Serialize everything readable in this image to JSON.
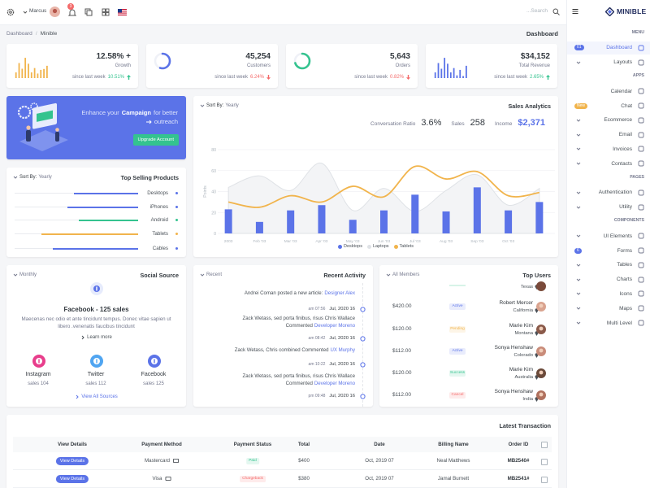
{
  "topbar": {
    "user": "Marcus",
    "notification_count": "3",
    "search_placeholder": "...Search"
  },
  "breadcrumb": {
    "items": [
      "Dashboard",
      "Minible"
    ],
    "separator": "/",
    "page_title": "Dashboard"
  },
  "sidebar": {
    "logo": "MINIBLE",
    "sections": [
      {
        "title": "MENU",
        "items": [
          {
            "label": "Dashboard",
            "badge": "01",
            "badge_color": "#5b73e8",
            "active": true
          },
          {
            "label": "Layouts",
            "submenu": true
          }
        ]
      },
      {
        "title": "APPS",
        "items": [
          {
            "label": "Calendar"
          },
          {
            "label": "Chat",
            "badge": "New",
            "badge_color": "#f1b44c"
          },
          {
            "label": "Ecommerce",
            "submenu": true
          },
          {
            "label": "Email",
            "submenu": true
          },
          {
            "label": "Invoices",
            "submenu": true
          },
          {
            "label": "Contacts",
            "submenu": true
          }
        ]
      },
      {
        "title": "PAGES",
        "items": [
          {
            "label": "Authentication",
            "submenu": true
          },
          {
            "label": "Utility",
            "submenu": true
          }
        ]
      },
      {
        "title": "COMPONENTS",
        "items": [
          {
            "label": "UI Elements",
            "submenu": true
          },
          {
            "label": "Forms",
            "badge": "6",
            "badge_color": "#5b73e8"
          },
          {
            "label": "Tables",
            "submenu": true
          },
          {
            "label": "Charts",
            "submenu": true
          },
          {
            "label": "Icons",
            "submenu": true
          },
          {
            "label": "Maps",
            "submenu": true
          },
          {
            "label": "Multi Level",
            "submenu": true
          }
        ]
      }
    ]
  },
  "stats": [
    {
      "value": "12.58% +",
      "label": "Growth",
      "note": "since last week",
      "change": "10.51%",
      "trend": "up",
      "chart_data": {
        "type": "bar",
        "color": "#f1b44c",
        "ylim": [
          0,
          100
        ],
        "values": [
          25,
          66,
          41,
          89,
          63,
          25,
          44,
          20,
          36,
          40,
          54
        ]
      }
    },
    {
      "value": "45,254",
      "label": "Customers",
      "note": "since last week",
      "change": "6.24%",
      "trend": "down",
      "chart_data": {
        "type": "radial",
        "color": "#5b73e8",
        "ylim": [
          0,
          100
        ],
        "values": [
          55
        ]
      }
    },
    {
      "value": "5,643",
      "label": "Orders",
      "note": "since last week",
      "change": "0.82%",
      "trend": "down",
      "chart_data": {
        "type": "radial",
        "color": "#34c38f",
        "ylim": [
          0,
          100
        ],
        "values": [
          70
        ]
      }
    },
    {
      "value": "$34,152",
      "label": "Total Revenue",
      "note": "since last week",
      "change": "2.65%",
      "trend": "up",
      "chart_data": {
        "type": "bar",
        "color": "#5b73e8",
        "ylim": [
          0,
          100
        ],
        "values": [
          25,
          66,
          41,
          89,
          63,
          25,
          44,
          12,
          36,
          9,
          54
        ]
      }
    }
  ],
  "campaign": {
    "text_prefix": "Enhance your",
    "highlight": "Campaign",
    "text_suffix": "for better",
    "text_last": "outreach",
    "button": "Upgrade Account"
  },
  "sales_analytics": {
    "sort_label": "Sort By:",
    "sort_value": "Yearly",
    "title": "Sales Analytics",
    "metrics": [
      {
        "label": "Conversation Ratio",
        "value": "3.6%",
        "color": "#343a40"
      },
      {
        "label": "Sales",
        "value": "258",
        "color": "#343a40"
      },
      {
        "label": "Income",
        "value": "$2,371",
        "color": "#5b73e8"
      }
    ],
    "chart_data": {
      "type": "mixed",
      "y_label": "Points",
      "categories": [
        "2003",
        "Feb '03",
        "Mar '03",
        "Apr '03",
        "May '03",
        "Jun '03",
        "Jul '03",
        "Aug '03",
        "Sep '03",
        "Oct '03",
        null
      ],
      "series": [
        {
          "name": "Desktops",
          "kind": "bar",
          "color": "#5b73e8",
          "values": [
            23,
            11,
            22,
            27,
            13,
            22,
            37,
            21,
            44,
            22,
            30
          ]
        },
        {
          "name": "Laptops",
          "kind": "area",
          "color": "#dfe2e6",
          "values": [
            44,
            55,
            41,
            67,
            22,
            43,
            21,
            41,
            56,
            27,
            43
          ]
        },
        {
          "name": "Tablets",
          "kind": "line",
          "color": "#f1b44c",
          "values": [
            30,
            25,
            36,
            30,
            45,
            35,
            64,
            52,
            59,
            36,
            39
          ]
        }
      ],
      "ylim": [
        0,
        80
      ],
      "yticks": [
        0,
        20,
        40,
        60,
        80
      ],
      "grid": true
    }
  },
  "top_selling": {
    "sort_label": "Sort By:",
    "sort_value": "Yearly",
    "title": "Top Selling Products",
    "max": 100,
    "items": [
      {
        "label": "Desktops",
        "value": 52,
        "color": "#5b73e8"
      },
      {
        "label": "iPhones",
        "value": 57,
        "color": "#5b73e8"
      },
      {
        "label": "Android",
        "value": 48,
        "color": "#34c38f"
      },
      {
        "label": "Tablets",
        "value": 78,
        "color": "#f1b44c"
      },
      {
        "label": "Cables",
        "value": 69,
        "color": "#5b73e8"
      }
    ]
  },
  "social_source": {
    "period": "Monthly",
    "title": "Social Source",
    "headline": "Facebook - 125 sales",
    "description": "Maecenas nec odio et ante tincidunt tempus. Donec vitae sapien ut libero .venenatis faucibus tincidunt",
    "learn_more": "Learn more",
    "sources": [
      {
        "name": "Instagram",
        "sales": "sales 104",
        "color": "#e83e8c"
      },
      {
        "name": "Twitter",
        "sales": "sales 112",
        "color": "#50a5f1"
      },
      {
        "name": "Facebook",
        "sales": "sales 125",
        "color": "#5b73e8"
      }
    ],
    "view_all": "View All Sources"
  },
  "recent_activity": {
    "period": "Recent",
    "title": "Recent Activity",
    "items": [
      {
        "text": "Andrei Coman posted a new article:",
        "link": "Designer Alex",
        "time": "am 07:56",
        "date": "Jul, 2020 16"
      },
      {
        "text": "Zack Wetass, sed porta finibus, risus Chris Wallace Commented",
        "link": "Developer Moreno",
        "time": "am 08:42",
        "date": "Jul, 2020 16"
      },
      {
        "text": "Zack Wetass, Chris combined Commented",
        "link": "UX Murphy",
        "time": "am 10:22",
        "date": "Jul, 2020 16"
      },
      {
        "text": "Zack Wetass, sed porta finibus, risus Chris Wallace Commented",
        "link": "Developer Moreno",
        "time": "pm 09:48",
        "date": "Jul, 2020 16"
      }
    ]
  },
  "top_users": {
    "filter": "All Members",
    "title": "Top Users",
    "partial_location": "Texas",
    "users": [
      {
        "name": "Robert Mercer",
        "location": "California",
        "amount": "$420.00",
        "status": "Active",
        "status_color": "#5b73e8"
      },
      {
        "name": "Marie Kim",
        "location": "Montana",
        "amount": "$120.00",
        "status": "Pending",
        "status_color": "#f1b44c"
      },
      {
        "name": "Sonya Henshaw",
        "location": "Colorado",
        "amount": "$112.00",
        "status": "Active",
        "status_color": "#5b73e8"
      },
      {
        "name": "Marie Kim",
        "location": "Australia",
        "amount": "$120.00",
        "status": "Success",
        "status_color": "#34c38f"
      },
      {
        "name": "Sonya Henshaw",
        "location": "India",
        "amount": "$112.00",
        "status": "Cancel",
        "status_color": "#f46a6a"
      }
    ]
  },
  "latest_transaction": {
    "title": "Latest Transaction",
    "columns": [
      "View Details",
      "Payment Method",
      "Payment Status",
      "Total",
      "Date",
      "Billing Name",
      "Order ID"
    ],
    "rows": [
      {
        "cells": [
          "View Details",
          "Mastercard",
          "Paid",
          "$400",
          "Oct, 2019 07",
          "Neal Matthews",
          "MB2540#"
        ],
        "status_color": "#34c38f"
      },
      {
        "cells": [
          "View Details",
          "Visa",
          "Chargeback",
          "$380",
          "Oct, 2019 07",
          "Jamal Burnett",
          "MB2541#"
        ],
        "status_color": "#f46a6a"
      }
    ]
  }
}
